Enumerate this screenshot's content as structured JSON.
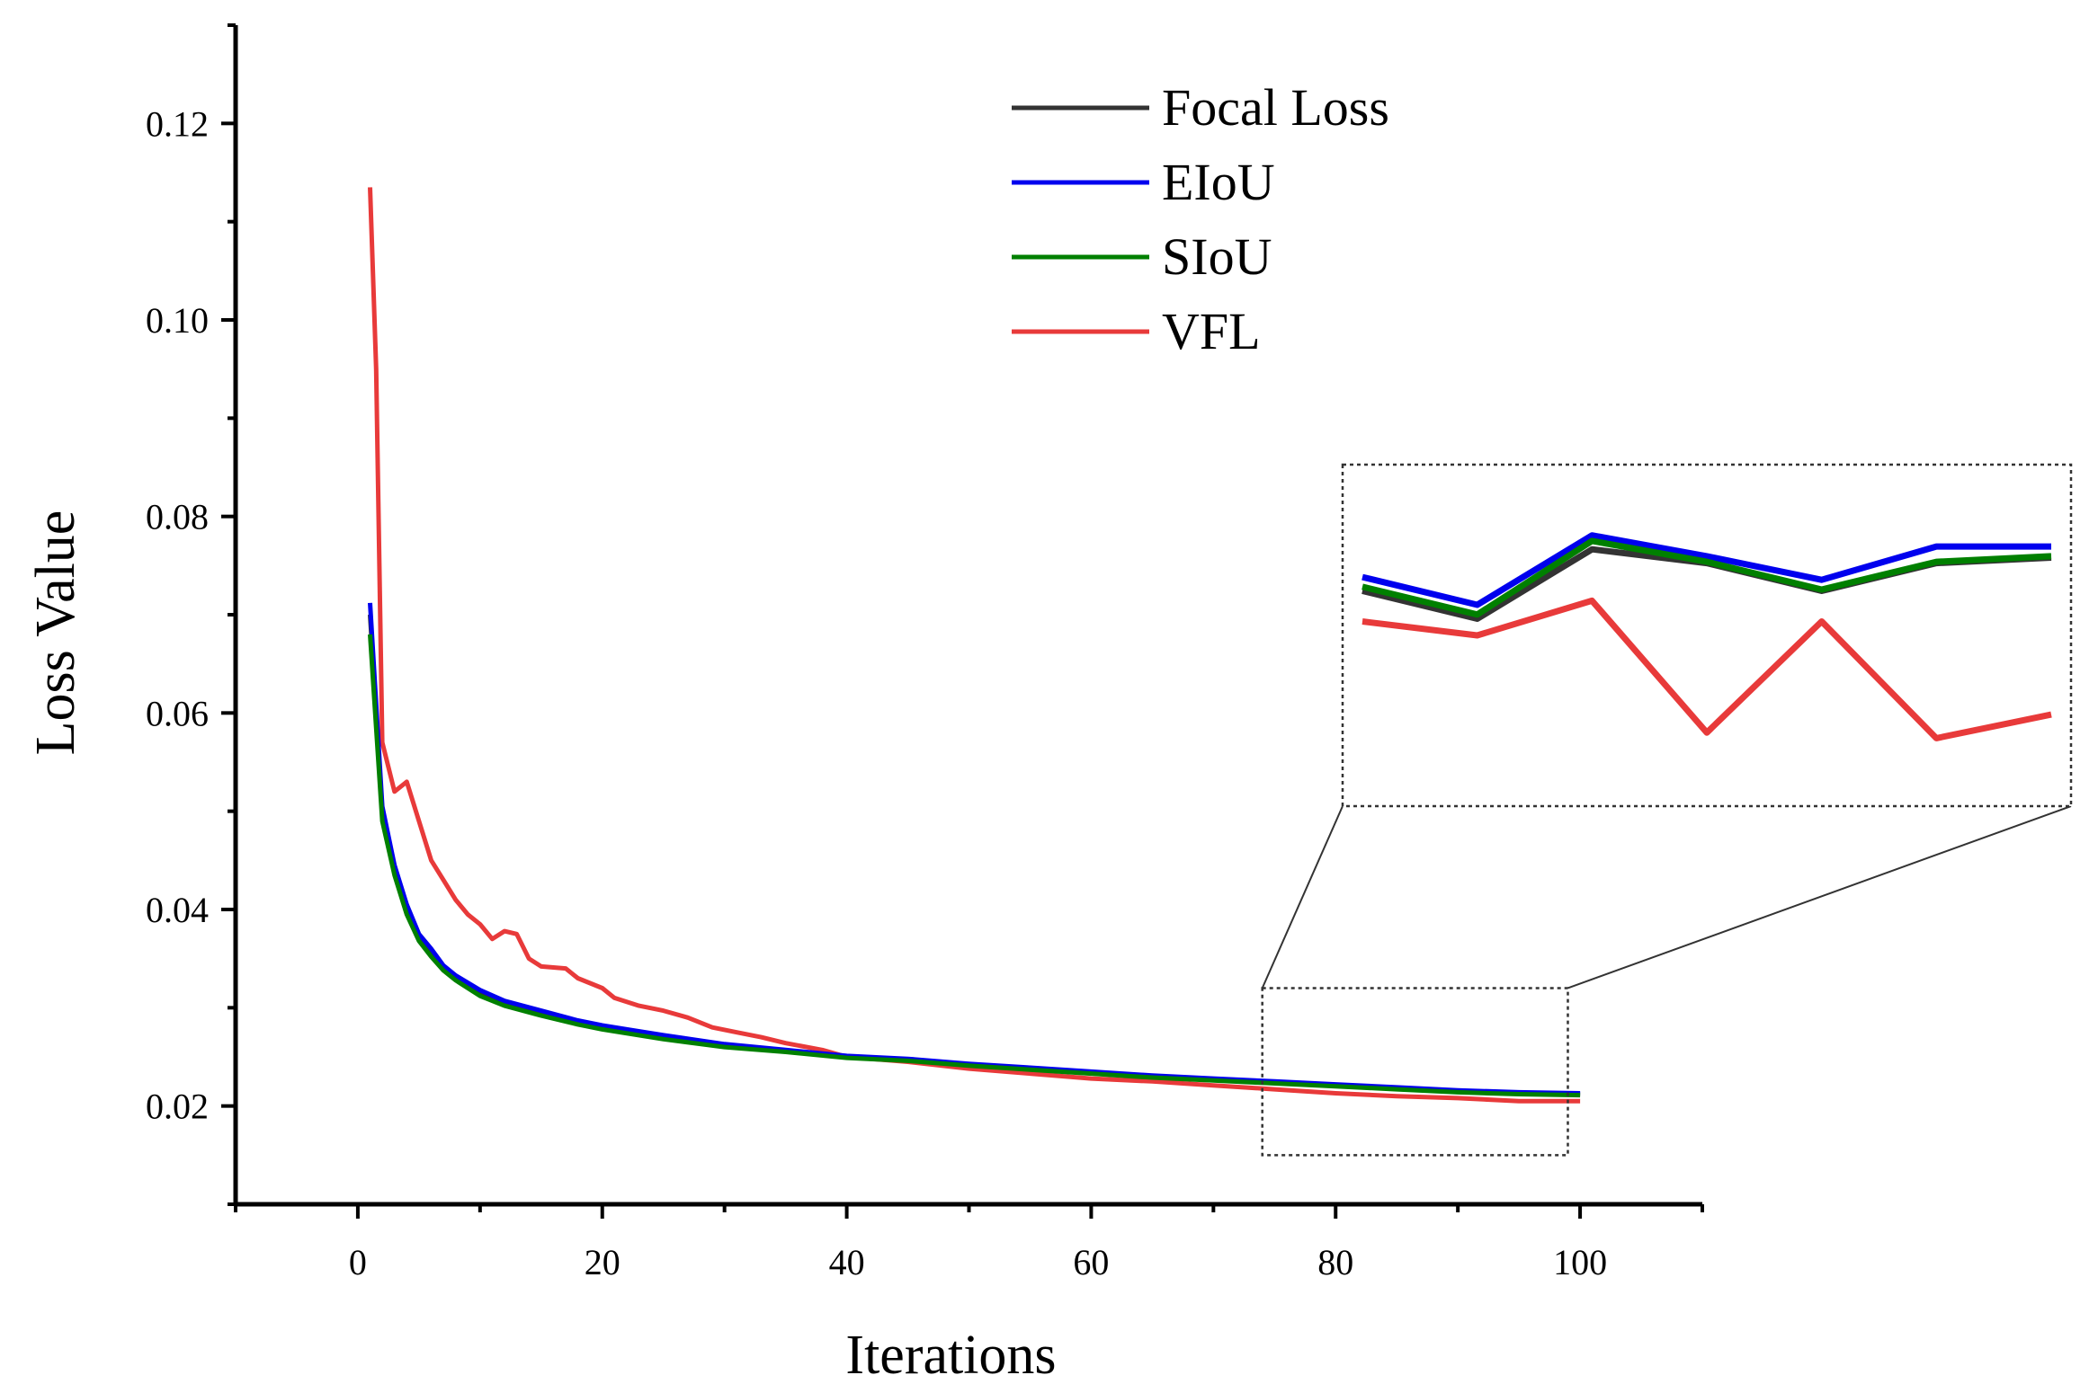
{
  "chart_data": {
    "type": "line",
    "title": "",
    "xlabel": "Iterations",
    "ylabel": "Loss Value",
    "xlim": [
      -10,
      110
    ],
    "ylim": [
      0.01,
      0.13
    ],
    "xticks": [
      "0",
      "20",
      "40",
      "60",
      "80",
      "100"
    ],
    "yticks": [
      "0.02",
      "0.04",
      "0.06",
      "0.08",
      "0.10",
      "0.12"
    ],
    "grid": false,
    "legend_position": "top-center",
    "series": [
      {
        "name": "Focal Loss",
        "color": "#333333",
        "points": [
          [
            1,
            0.07
          ],
          [
            2,
            0.05
          ],
          [
            3,
            0.044
          ],
          [
            4,
            0.04
          ],
          [
            5,
            0.037
          ],
          [
            6,
            0.0355
          ],
          [
            7,
            0.034
          ],
          [
            8,
            0.033
          ],
          [
            10,
            0.0315
          ],
          [
            12,
            0.0305
          ],
          [
            15,
            0.0295
          ],
          [
            18,
            0.0285
          ],
          [
            20,
            0.028
          ],
          [
            25,
            0.027
          ],
          [
            30,
            0.0262
          ],
          [
            35,
            0.0256
          ],
          [
            40,
            0.025
          ],
          [
            45,
            0.0247
          ],
          [
            50,
            0.0242
          ],
          [
            55,
            0.0238
          ],
          [
            60,
            0.0234
          ],
          [
            65,
            0.023
          ],
          [
            70,
            0.0227
          ],
          [
            75,
            0.0224
          ],
          [
            80,
            0.0221
          ],
          [
            85,
            0.0218
          ],
          [
            90,
            0.0215
          ],
          [
            95,
            0.0213
          ],
          [
            100,
            0.0212
          ]
        ]
      },
      {
        "name": "EIoU",
        "color": "#0000ee",
        "points": [
          [
            1,
            0.0712
          ],
          [
            2,
            0.0505
          ],
          [
            3,
            0.0445
          ],
          [
            4,
            0.0405
          ],
          [
            5,
            0.0375
          ],
          [
            6,
            0.036
          ],
          [
            7,
            0.0343
          ],
          [
            8,
            0.0333
          ],
          [
            10,
            0.0318
          ],
          [
            12,
            0.0307
          ],
          [
            15,
            0.0297
          ],
          [
            18,
            0.0287
          ],
          [
            20,
            0.0282
          ],
          [
            25,
            0.0272
          ],
          [
            30,
            0.0263
          ],
          [
            35,
            0.0257
          ],
          [
            40,
            0.0251
          ],
          [
            45,
            0.0248
          ],
          [
            50,
            0.0243
          ],
          [
            55,
            0.0239
          ],
          [
            60,
            0.0235
          ],
          [
            65,
            0.0231
          ],
          [
            70,
            0.0228
          ],
          [
            75,
            0.0225
          ],
          [
            80,
            0.0222
          ],
          [
            85,
            0.0219
          ],
          [
            90,
            0.0216
          ],
          [
            95,
            0.0214
          ],
          [
            100,
            0.0213
          ]
        ]
      },
      {
        "name": "SIoU",
        "color": "#008000",
        "points": [
          [
            1,
            0.068
          ],
          [
            2,
            0.049
          ],
          [
            3,
            0.0435
          ],
          [
            4,
            0.0395
          ],
          [
            5,
            0.0368
          ],
          [
            6,
            0.0352
          ],
          [
            7,
            0.0338
          ],
          [
            8,
            0.0328
          ],
          [
            10,
            0.0312
          ],
          [
            12,
            0.0302
          ],
          [
            15,
            0.0292
          ],
          [
            18,
            0.0283
          ],
          [
            20,
            0.0278
          ],
          [
            25,
            0.0268
          ],
          [
            30,
            0.026
          ],
          [
            35,
            0.0255
          ],
          [
            40,
            0.0249
          ],
          [
            45,
            0.0246
          ],
          [
            50,
            0.0241
          ],
          [
            55,
            0.0237
          ],
          [
            60,
            0.0233
          ],
          [
            65,
            0.0229
          ],
          [
            70,
            0.0226
          ],
          [
            75,
            0.0223
          ],
          [
            80,
            0.022
          ],
          [
            85,
            0.0217
          ],
          [
            90,
            0.0214
          ],
          [
            95,
            0.0212
          ],
          [
            100,
            0.0211
          ]
        ]
      },
      {
        "name": "VFL",
        "color": "#e83a3a",
        "points": [
          [
            1,
            0.1135
          ],
          [
            1.5,
            0.095
          ],
          [
            2,
            0.057
          ],
          [
            3,
            0.052
          ],
          [
            4,
            0.053
          ],
          [
            5,
            0.049
          ],
          [
            6,
            0.045
          ],
          [
            7,
            0.043
          ],
          [
            8,
            0.041
          ],
          [
            9,
            0.0395
          ],
          [
            10,
            0.0385
          ],
          [
            11,
            0.037
          ],
          [
            12,
            0.0378
          ],
          [
            13,
            0.0375
          ],
          [
            14,
            0.035
          ],
          [
            15,
            0.0342
          ],
          [
            17,
            0.034
          ],
          [
            18,
            0.033
          ],
          [
            20,
            0.032
          ],
          [
            21,
            0.031
          ],
          [
            23,
            0.0302
          ],
          [
            25,
            0.0297
          ],
          [
            27,
            0.029
          ],
          [
            29,
            0.028
          ],
          [
            31,
            0.0275
          ],
          [
            33,
            0.027
          ],
          [
            35,
            0.0264
          ],
          [
            38,
            0.0257
          ],
          [
            40,
            0.025
          ],
          [
            45,
            0.0245
          ],
          [
            50,
            0.0238
          ],
          [
            55,
            0.0233
          ],
          [
            60,
            0.0228
          ],
          [
            65,
            0.0225
          ],
          [
            70,
            0.0221
          ],
          [
            75,
            0.0217
          ],
          [
            80,
            0.0213
          ],
          [
            85,
            0.021
          ],
          [
            90,
            0.0208
          ],
          [
            95,
            0.0205
          ],
          [
            100,
            0.0205
          ]
        ]
      }
    ],
    "inset": {
      "zoom_x_range": [
        74,
        99
      ],
      "zoom_y_range": [
        0.015,
        0.032
      ],
      "series": [
        {
          "name": "Focal Loss",
          "values": [
            0.0702,
            0.0682,
            0.0732,
            0.0722,
            0.0702,
            0.0722,
            0.0726
          ]
        },
        {
          "name": "EIoU",
          "values": [
            0.0712,
            0.0692,
            0.0742,
            0.0727,
            0.071,
            0.0734,
            0.0734
          ]
        },
        {
          "name": "SIoU",
          "values": [
            0.0705,
            0.0685,
            0.0738,
            0.0723,
            0.0703,
            0.0723,
            0.0727
          ]
        },
        {
          "name": "VFL",
          "values": [
            0.068,
            0.067,
            0.0695,
            0.06,
            0.068,
            0.0596,
            0.0613
          ]
        }
      ]
    }
  }
}
